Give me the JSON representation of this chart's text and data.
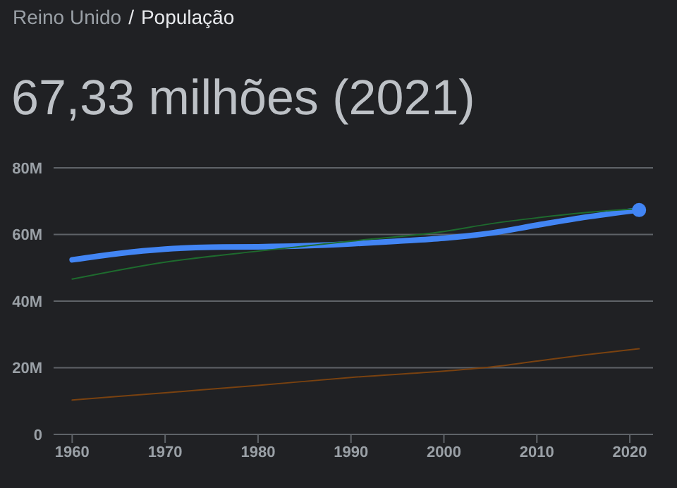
{
  "chart_data": {
    "type": "line",
    "title": "67,33 milhões (2021)",
    "subtitle": "Reino Unido / População",
    "series": [
      {
        "color": "#4285f4",
        "x": [
          1960,
          1965,
          1970,
          1975,
          1980,
          1985,
          1990,
          1995,
          2000,
          2005,
          2010,
          2015,
          2021
        ],
        "values": [
          52.4,
          54.3,
          55.6,
          56.2,
          56.3,
          56.6,
          57.2,
          58.0,
          58.9,
          60.4,
          62.8,
          65.1,
          67.33
        ]
      },
      {
        "color": "#1e6b2e",
        "x": [
          1960,
          1970,
          1980,
          1990,
          2000,
          2005,
          2010,
          2015,
          2021
        ],
        "values": [
          46.6,
          51.7,
          55.0,
          58.0,
          60.9,
          63.2,
          65.0,
          66.5,
          67.7
        ]
      },
      {
        "color": "#7a4210",
        "x": [
          1960,
          1970,
          1980,
          1990,
          2000,
          2005,
          2010,
          2015,
          2021
        ],
        "values": [
          10.3,
          12.5,
          14.7,
          17.1,
          19.0,
          20.2,
          22.0,
          23.8,
          25.7
        ]
      },
      {
        "type": "scatter",
        "marker": "circle",
        "color": "#4285f4",
        "x": [
          2021
        ],
        "values": [
          67.33
        ]
      }
    ],
    "xlim": [
      1958,
      2022.5
    ],
    "xticks": [
      1960,
      1970,
      1980,
      1990,
      2000,
      2010,
      2020
    ],
    "ylim": [
      0,
      80
    ],
    "yticks": [
      0,
      {
        "value": 20,
        "label": "20M"
      },
      {
        "value": 40,
        "label": "40M"
      },
      {
        "value": 60,
        "label": "60M"
      },
      {
        "value": 80,
        "label": "80M"
      }
    ],
    "grid": "y",
    "marker": "none",
    "line_style": "solid"
  }
}
